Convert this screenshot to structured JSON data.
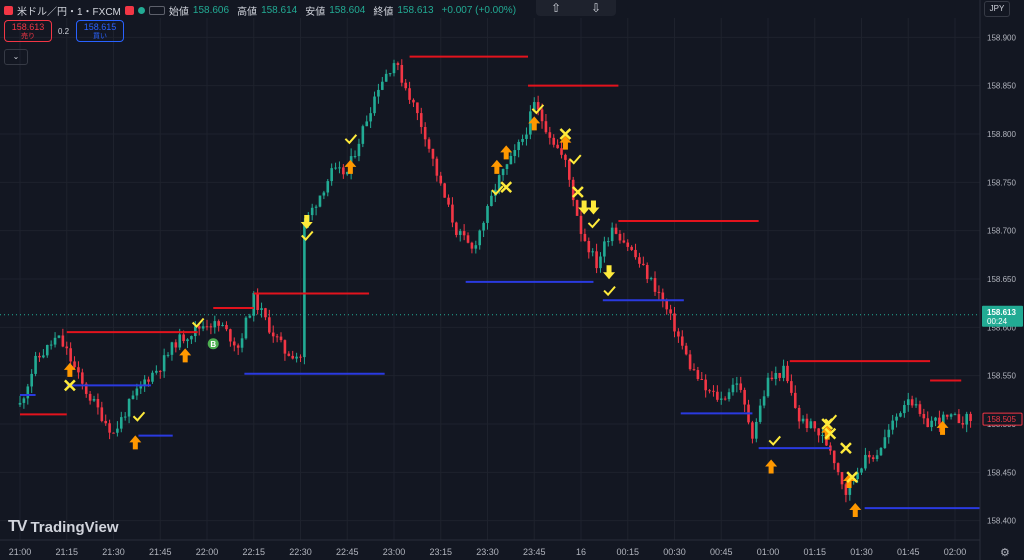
{
  "header": {
    "symbol": "米ドル／円・1・FXCM",
    "open_label": "始値",
    "open": "158.606",
    "high_label": "高値",
    "high": "158.614",
    "low_label": "安値",
    "low": "158.604",
    "close_label": "終値",
    "close": "158.613",
    "change": "+0.007 (+0.00%)"
  },
  "trade": {
    "sell_price": "158.613",
    "sell_label": "売り",
    "spread": "0.2",
    "buy_price": "158.615",
    "buy_label": "買い"
  },
  "currency": "JPY",
  "logo": "TradingView",
  "colors": {
    "up": "#22ab94",
    "down": "#f23645",
    "resistance": "#e3131d",
    "support": "#2a3ae0",
    "arrow": "#ff9800",
    "signal": "#ffeb3b",
    "bg": "#131722"
  },
  "chart_data": {
    "type": "candlestick",
    "symbol": "USDJPY",
    "timeframe": "1",
    "ylim": [
      158.38,
      158.92
    ],
    "y_ticks": [
      "158.900",
      "158.850",
      "158.800",
      "158.750",
      "158.700",
      "158.650",
      "158.600",
      "158.550",
      "158.500",
      "158.450",
      "158.400"
    ],
    "x_ticks": [
      "21:00",
      "21:15",
      "21:30",
      "21:45",
      "22:00",
      "22:15",
      "22:30",
      "22:45",
      "23:00",
      "23:15",
      "23:30",
      "23:45",
      "16",
      "00:15",
      "00:30",
      "00:45",
      "01:00",
      "01:15",
      "01:30",
      "01:45",
      "02:00"
    ],
    "current_price": "158.613",
    "countdown": "00:24",
    "marked_price": "158.505",
    "series": [
      {
        "name": "price",
        "points": [
          [
            "21:00",
            158.52
          ],
          [
            "21:05",
            158.565
          ],
          [
            "21:12",
            158.59
          ],
          [
            "21:15",
            158.575
          ],
          [
            "21:20",
            158.54
          ],
          [
            "21:25",
            158.515
          ],
          [
            "21:30",
            158.49
          ],
          [
            "21:35",
            158.52
          ],
          [
            "21:40",
            158.545
          ],
          [
            "21:45",
            158.56
          ],
          [
            "21:50",
            158.585
          ],
          [
            "21:55",
            158.595
          ],
          [
            "22:00",
            158.605
          ],
          [
            "22:05",
            158.6
          ],
          [
            "22:10",
            158.58
          ],
          [
            "22:15",
            158.63
          ],
          [
            "22:20",
            158.6
          ],
          [
            "22:25",
            158.575
          ],
          [
            "22:30",
            158.57
          ],
          [
            "22:31",
            158.705
          ],
          [
            "22:35",
            158.73
          ],
          [
            "22:40",
            158.76
          ],
          [
            "22:45",
            158.76
          ],
          [
            "22:50",
            158.805
          ],
          [
            "22:55",
            158.85
          ],
          [
            "23:00",
            158.875
          ],
          [
            "23:05",
            158.84
          ],
          [
            "23:10",
            158.8
          ],
          [
            "23:15",
            158.745
          ],
          [
            "23:20",
            158.7
          ],
          [
            "23:25",
            158.68
          ],
          [
            "23:30",
            158.72
          ],
          [
            "23:33",
            158.75
          ],
          [
            "23:38",
            158.775
          ],
          [
            "23:42",
            158.8
          ],
          [
            "23:45",
            158.83
          ],
          [
            "23:50",
            158.8
          ],
          [
            "23:55",
            158.77
          ],
          [
            "00:00",
            158.7
          ],
          [
            "00:05",
            158.665
          ],
          [
            "00:10",
            158.705
          ],
          [
            "00:15",
            158.685
          ],
          [
            "00:20",
            158.66
          ],
          [
            "00:25",
            158.635
          ],
          [
            "00:30",
            158.6
          ],
          [
            "00:35",
            158.56
          ],
          [
            "00:40",
            158.535
          ],
          [
            "00:45",
            158.525
          ],
          [
            "00:50",
            158.545
          ],
          [
            "00:55",
            158.49
          ],
          [
            "01:00",
            158.545
          ],
          [
            "01:05",
            158.555
          ],
          [
            "01:10",
            158.505
          ],
          [
            "01:15",
            158.495
          ],
          [
            "01:20",
            158.475
          ],
          [
            "01:25",
            158.43
          ],
          [
            "01:30",
            158.46
          ],
          [
            "01:35",
            158.47
          ],
          [
            "01:40",
            158.5
          ],
          [
            "01:45",
            158.53
          ],
          [
            "01:50",
            158.5
          ],
          [
            "01:55",
            158.505
          ],
          [
            "02:00",
            158.505
          ],
          [
            "02:05",
            158.505
          ]
        ]
      }
    ],
    "resistance_levels": [
      {
        "start": "21:00",
        "end": "21:15",
        "y": 158.51
      },
      {
        "start": "21:15",
        "end": "21:57",
        "y": 158.595
      },
      {
        "start": "22:02",
        "end": "22:15",
        "y": 158.62
      },
      {
        "start": "22:15",
        "end": "22:52",
        "y": 158.635
      },
      {
        "start": "23:05",
        "end": "23:43",
        "y": 158.88
      },
      {
        "start": "23:43",
        "end": "00:12",
        "y": 158.85
      },
      {
        "start": "00:12",
        "end": "00:57",
        "y": 158.71
      },
      {
        "start": "01:07",
        "end": "01:52",
        "y": 158.565
      },
      {
        "start": "01:52",
        "end": "02:02",
        "y": 158.545
      }
    ],
    "support_levels": [
      {
        "start": "21:00",
        "end": "21:05",
        "y": 158.53
      },
      {
        "start": "21:15",
        "end": "21:42",
        "y": 158.54
      },
      {
        "start": "21:38",
        "end": "21:49",
        "y": 158.488
      },
      {
        "start": "22:12",
        "end": "22:57",
        "y": 158.552
      },
      {
        "start": "23:23",
        "end": "00:04",
        "y": 158.647
      },
      {
        "start": "00:07",
        "end": "00:33",
        "y": 158.628
      },
      {
        "start": "00:32",
        "end": "00:55",
        "y": 158.511
      },
      {
        "start": "00:57",
        "end": "01:20",
        "y": 158.475
      },
      {
        "start": "01:31",
        "end": "02:08",
        "y": 158.413
      }
    ],
    "up_arrows": [
      [
        "21:16",
        158.555
      ],
      [
        "21:37",
        158.48
      ],
      [
        "21:53",
        158.57
      ],
      [
        "22:46",
        158.765
      ],
      [
        "23:33",
        158.765
      ],
      [
        "23:36",
        158.78
      ],
      [
        "23:45",
        158.81
      ],
      [
        "23:55",
        158.79
      ],
      [
        "01:01",
        158.455
      ],
      [
        "01:19",
        158.49
      ],
      [
        "01:26",
        158.44
      ],
      [
        "01:28",
        158.41
      ],
      [
        "01:56",
        158.495
      ]
    ],
    "down_arrows": [
      [
        "22:32",
        158.71
      ],
      [
        "00:01",
        158.725
      ],
      [
        "00:04",
        158.725
      ],
      [
        "00:09",
        158.658
      ]
    ],
    "checks": [
      [
        "21:38",
        158.508
      ],
      [
        "21:57",
        158.605
      ],
      [
        "22:32",
        158.695
      ],
      [
        "22:46",
        158.795
      ],
      [
        "23:33",
        158.742
      ],
      [
        "23:46",
        158.826
      ],
      [
        "23:58",
        158.774
      ],
      [
        "00:04",
        158.708
      ],
      [
        "00:09",
        158.638
      ],
      [
        "01:02",
        158.483
      ],
      [
        "01:20",
        158.505
      ]
    ],
    "crosses": [
      [
        "21:16",
        158.54
      ],
      [
        "23:36",
        158.745
      ],
      [
        "23:55",
        158.8
      ],
      [
        "23:59",
        158.74
      ],
      [
        "01:19",
        158.5
      ],
      [
        "01:20",
        158.49
      ],
      [
        "01:25",
        158.475
      ],
      [
        "01:27",
        158.445
      ]
    ],
    "badge": {
      "time": "22:02",
      "y": 158.583,
      "text": "B"
    }
  }
}
